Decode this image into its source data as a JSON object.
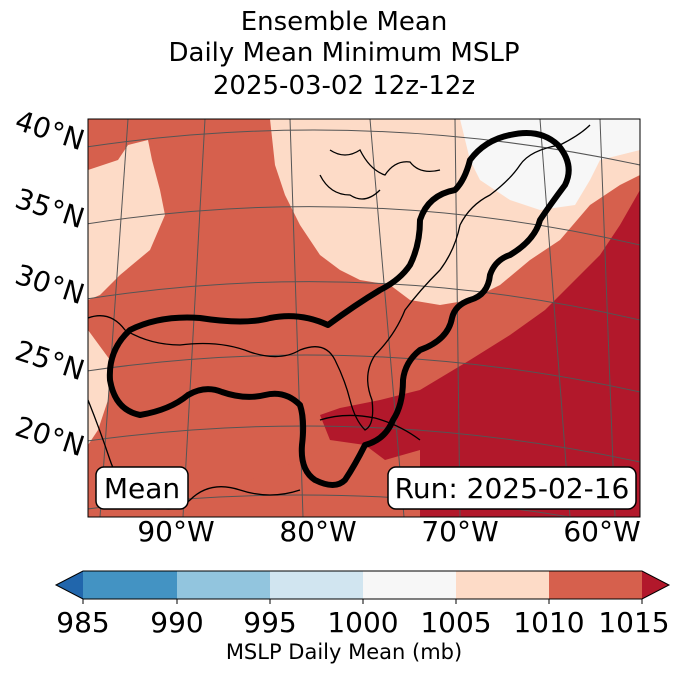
{
  "title": {
    "line1": "Ensemble Mean",
    "line2": "Daily Mean Minimum MSLP",
    "line3": "2025-03-02 12z-12z"
  },
  "map": {
    "lat_labels": [
      "40°N",
      "35°N",
      "30°N",
      "25°N",
      "20°N"
    ],
    "lon_labels": [
      "90°W",
      "80°W",
      "70°W",
      "60°W"
    ],
    "mean_box": "Mean",
    "run_box": "Run: 2025-02-16",
    "colors": {
      "c1000_1005": "#f7f7f7",
      "c1005_1010": "#fddbc7",
      "c1010_1015": "#d6604d",
      "c1015_plus": "#b2182b",
      "coast": "#000000",
      "contour": "#000000",
      "grid": "#555555"
    }
  },
  "colorbar": {
    "ticks": [
      "985",
      "990",
      "995",
      "1000",
      "1005",
      "1010",
      "1015"
    ],
    "colors": [
      "#2166ac",
      "#4393c3",
      "#92c5de",
      "#d1e5f0",
      "#f7f7f7",
      "#fddbc7",
      "#d6604d",
      "#b2182b"
    ],
    "label": "MSLP Daily Mean (mb)"
  }
}
